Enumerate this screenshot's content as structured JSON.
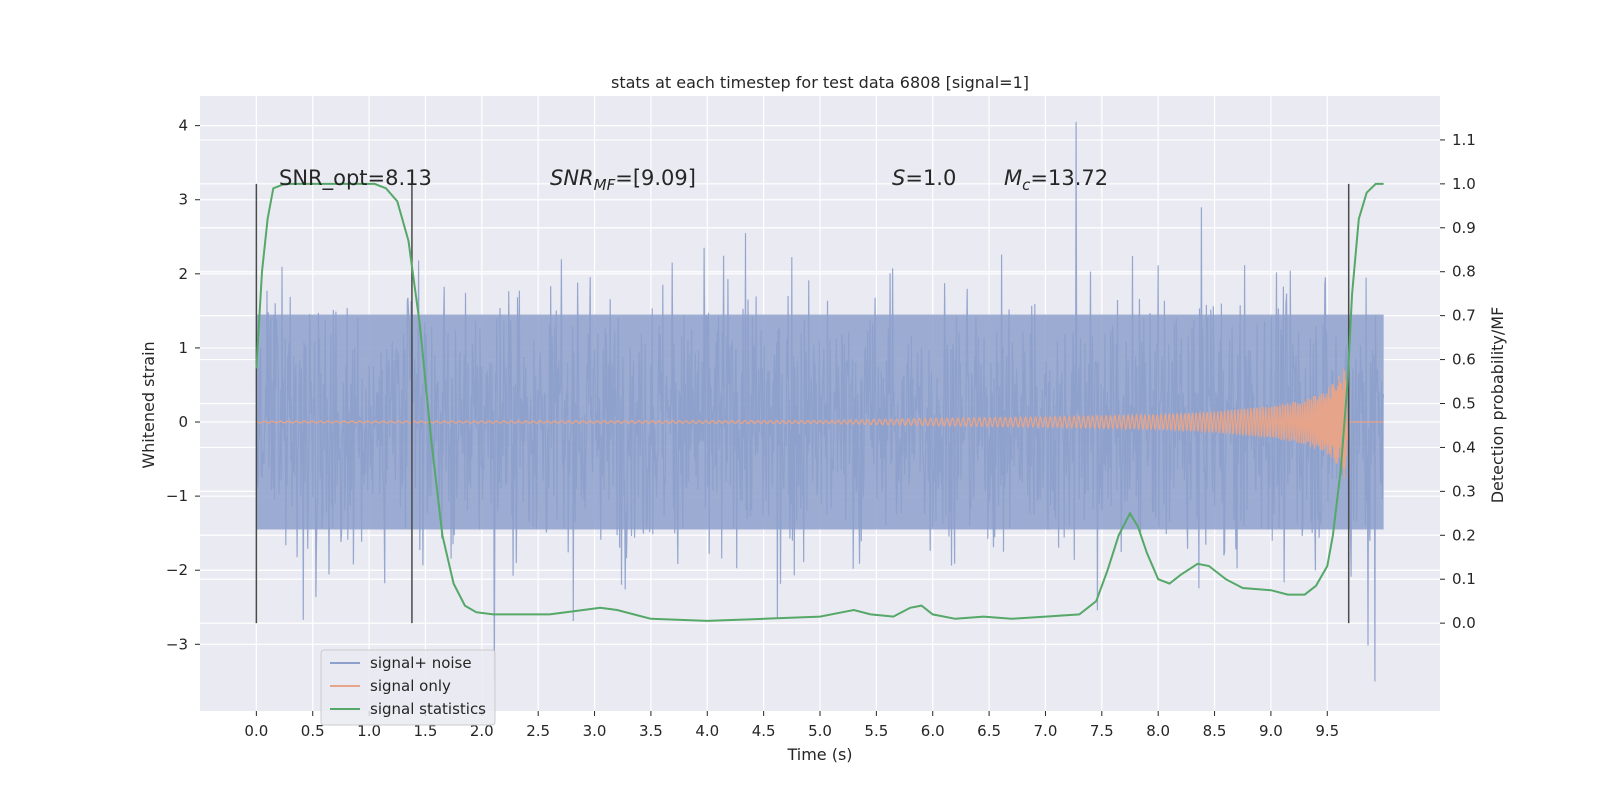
{
  "chart_data": {
    "type": "line",
    "title": "stats at each timestep for test data 6808 [signal=1]",
    "xlabel": "Time (s)",
    "ylabel_left": "Whitened strain",
    "ylabel_right": "Detection probability/MF",
    "xlim": [
      -0.5,
      10.5
    ],
    "ylim_left": [
      -3.9,
      4.4
    ],
    "ylim_right": [
      -0.2,
      1.2
    ],
    "x_ticks": [
      "0.0",
      "0.5",
      "1.0",
      "1.5",
      "2.0",
      "2.5",
      "3.0",
      "3.5",
      "4.0",
      "4.5",
      "5.0",
      "5.5",
      "6.0",
      "6.5",
      "7.0",
      "7.5",
      "8.0",
      "8.5",
      "9.0",
      "9.5"
    ],
    "x_tick_values": [
      0,
      0.5,
      1,
      1.5,
      2,
      2.5,
      3,
      3.5,
      4,
      4.5,
      5,
      5.5,
      6,
      6.5,
      7,
      7.5,
      8,
      8.5,
      9,
      9.5
    ],
    "y_left_ticks": [
      "−3",
      "−2",
      "−1",
      "0",
      "1",
      "2",
      "3",
      "4"
    ],
    "y_left_tick_values": [
      -3,
      -2,
      -1,
      0,
      1,
      2,
      3,
      4
    ],
    "y_right_ticks": [
      "0.0",
      "0.1",
      "0.2",
      "0.3",
      "0.4",
      "0.5",
      "0.6",
      "0.7",
      "0.8",
      "0.9",
      "1.0",
      "1.1"
    ],
    "y_right_tick_values": [
      0,
      0.1,
      0.2,
      0.3,
      0.4,
      0.5,
      0.6,
      0.7,
      0.8,
      0.9,
      1.0,
      1.1
    ],
    "grid": true,
    "legend_position": "lower-left",
    "series": [
      {
        "name": "signal+ noise",
        "color": "#8da0cb",
        "axis": "left",
        "description_values": {
          "x_start": 0.0,
          "x_end": 10.0,
          "approx_range": [
            -3.5,
            4.1
          ]
        }
      },
      {
        "name": "signal only",
        "color": "#e6a48a",
        "axis": "left",
        "x": [
          0.0,
          5.0,
          6.0,
          7.0,
          8.0,
          8.5,
          9.0,
          9.3,
          9.5,
          9.6,
          9.65,
          9.7
        ],
        "envelope": [
          0.01,
          0.02,
          0.05,
          0.07,
          0.1,
          0.14,
          0.22,
          0.3,
          0.45,
          0.62,
          0.75,
          0.0
        ]
      },
      {
        "name": "signal statistics",
        "color": "#55a868",
        "axis": "right",
        "x": [
          0.0,
          0.05,
          0.1,
          0.15,
          0.25,
          0.5,
          0.8,
          1.05,
          1.15,
          1.25,
          1.35,
          1.45,
          1.55,
          1.65,
          1.75,
          1.85,
          1.95,
          2.1,
          2.3,
          2.6,
          2.9,
          3.05,
          3.2,
          3.5,
          4.0,
          4.5,
          5.0,
          5.2,
          5.3,
          5.45,
          5.65,
          5.8,
          5.9,
          6.0,
          6.2,
          6.45,
          6.7,
          7.0,
          7.3,
          7.45,
          7.55,
          7.65,
          7.75,
          7.82,
          7.9,
          8.0,
          8.1,
          8.2,
          8.35,
          8.45,
          8.6,
          8.75,
          9.0,
          9.15,
          9.3,
          9.4,
          9.5,
          9.55,
          9.62,
          9.68,
          9.72,
          9.78,
          9.85,
          9.93,
          10.0
        ],
        "y": [
          0.58,
          0.8,
          0.92,
          0.99,
          1.0,
          1.0,
          1.0,
          1.0,
          0.99,
          0.96,
          0.87,
          0.68,
          0.42,
          0.2,
          0.09,
          0.04,
          0.025,
          0.02,
          0.02,
          0.02,
          0.03,
          0.035,
          0.03,
          0.01,
          0.005,
          0.01,
          0.015,
          0.025,
          0.03,
          0.02,
          0.015,
          0.035,
          0.04,
          0.02,
          0.01,
          0.015,
          0.01,
          0.015,
          0.02,
          0.05,
          0.12,
          0.2,
          0.25,
          0.22,
          0.16,
          0.1,
          0.09,
          0.11,
          0.135,
          0.13,
          0.1,
          0.08,
          0.075,
          0.065,
          0.065,
          0.085,
          0.13,
          0.2,
          0.35,
          0.55,
          0.75,
          0.92,
          0.98,
          1.0,
          1.0
        ]
      }
    ],
    "vertical_lines_x": [
      0.0,
      1.38,
      9.69
    ],
    "annotations": [
      {
        "text": "SNR_opt=8.13"
      },
      {
        "text": "SNR",
        "sub": "MF",
        "suffix": "=[9.09]"
      },
      {
        "text": "S",
        "suffix": "=1.0"
      },
      {
        "text": "M",
        "sub": "c",
        "suffix": "=13.72"
      }
    ]
  }
}
